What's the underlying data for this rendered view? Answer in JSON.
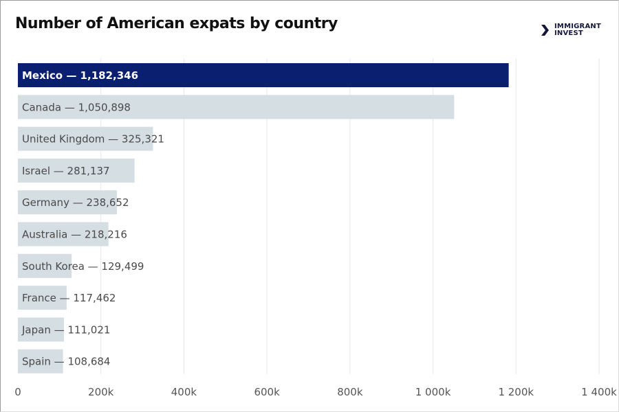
{
  "chart_data": {
    "type": "bar",
    "orientation": "horizontal",
    "title": "Number of American expats by country",
    "categories": [
      "Mexico",
      "Canada",
      "United Kingdom",
      "Israel",
      "Germany",
      "Australia",
      "South Korea",
      "France",
      "Japan",
      "Spain"
    ],
    "values": [
      1182346,
      1050898,
      325321,
      281137,
      238652,
      218216,
      129499,
      117462,
      111021,
      108684
    ],
    "labels": [
      "Mexico — 1,182,346",
      "Canada — 1,050,898",
      "United Kingdom — 325,321",
      "Israel — 281,137",
      "Germany — 238,652",
      "Australia — 218,216",
      "South Korea — 129,499",
      "France — 117,462",
      "Japan — 111,021",
      "Spain — 108,684"
    ],
    "xlim": [
      0,
      1400000
    ],
    "xticks": [
      0,
      200000,
      400000,
      600000,
      800000,
      1000000,
      1200000,
      1400000
    ],
    "xtick_labels": [
      "0",
      "200k",
      "400k",
      "600k",
      "800k",
      "1 000k",
      "1 200k",
      "1 400k"
    ],
    "grid": true,
    "colors": {
      "highlight": "#0a1f70",
      "default": "#d5dee3",
      "highlight_text": "#ffffff",
      "default_text": "#4a4a4a"
    }
  },
  "logo": {
    "text_line1": "IMMIGRANT",
    "text_line2": "INVEST"
  }
}
